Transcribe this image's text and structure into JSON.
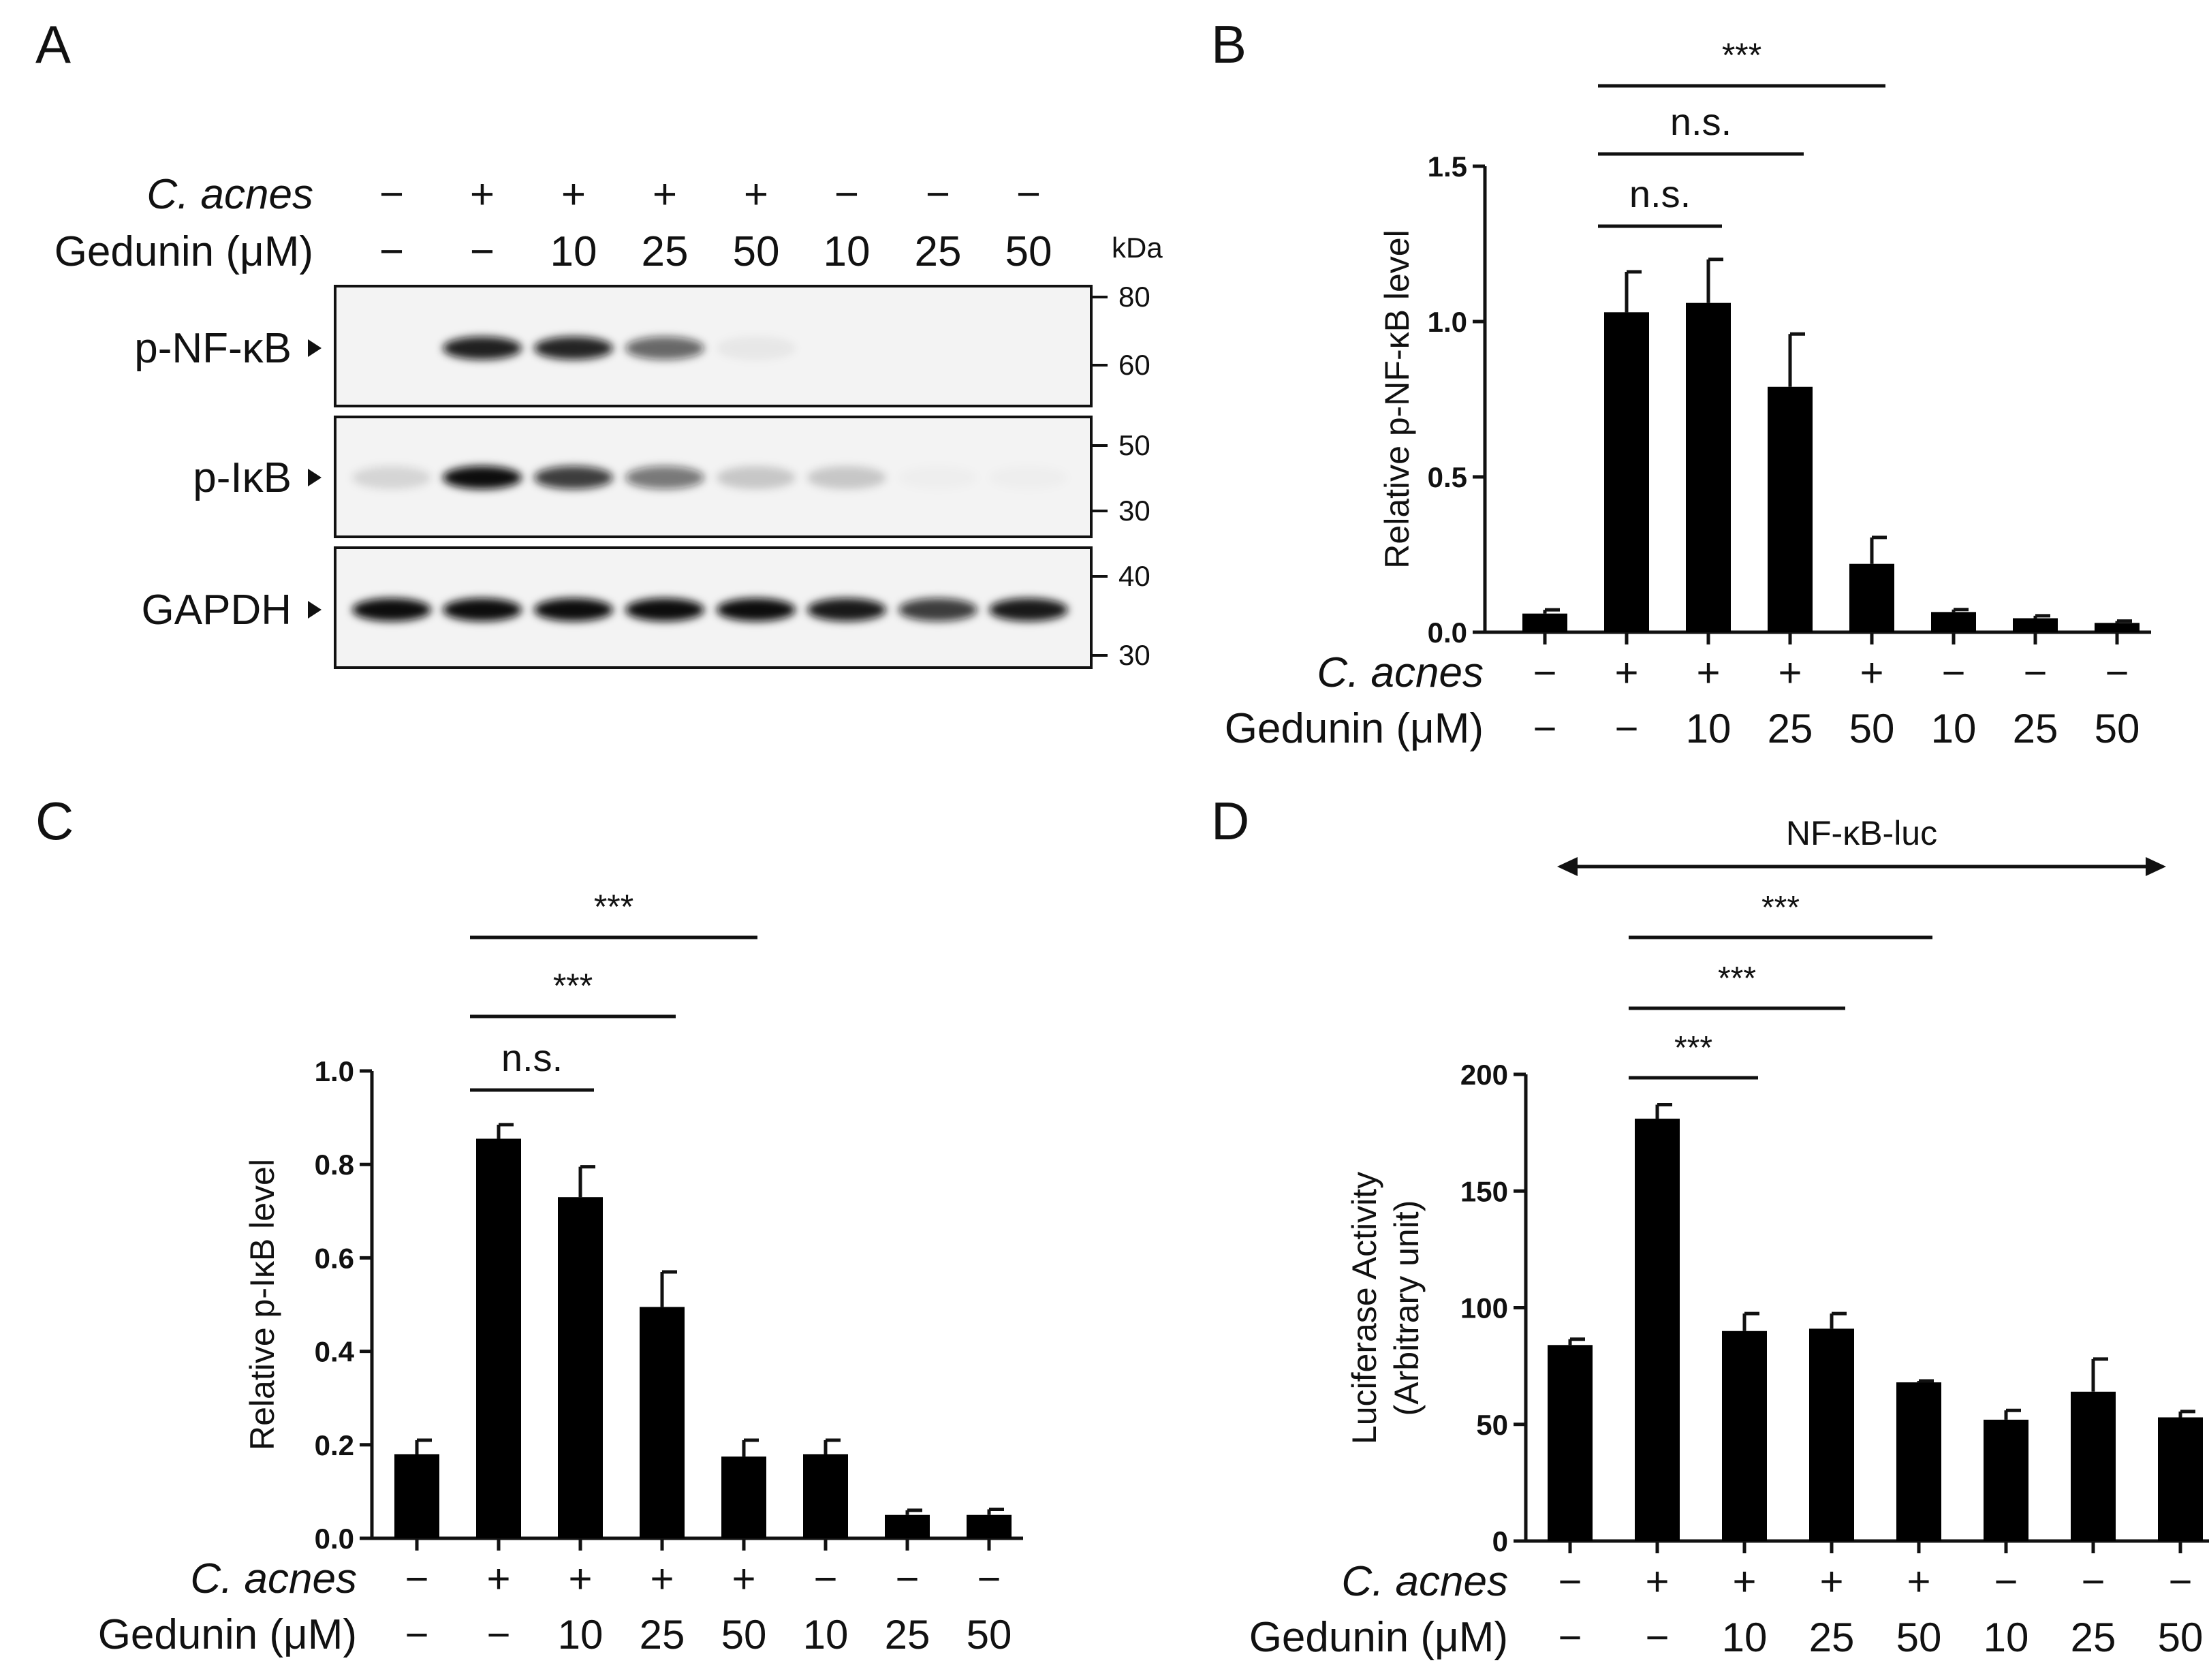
{
  "chart_data": [
    {
      "panel": "A",
      "type": "western-blot",
      "unit_label": "kDa",
      "row_labels": [
        "C. acnes",
        "Gedunin (μM)"
      ],
      "lanes": [
        {
          "c_acnes": "−",
          "gedunin": "−"
        },
        {
          "c_acnes": "+",
          "gedunin": "−"
        },
        {
          "c_acnes": "+",
          "gedunin": "10"
        },
        {
          "c_acnes": "+",
          "gedunin": "25"
        },
        {
          "c_acnes": "+",
          "gedunin": "50"
        },
        {
          "c_acnes": "−",
          "gedunin": "10"
        },
        {
          "c_acnes": "−",
          "gedunin": "25"
        },
        {
          "c_acnes": "−",
          "gedunin": "50"
        }
      ],
      "blots": [
        {
          "label": "p-NF-κB",
          "markers": [
            "80",
            "60"
          ],
          "intensities": [
            0,
            0.92,
            0.9,
            0.62,
            0.05,
            0,
            0,
            0
          ]
        },
        {
          "label": "p-IκB",
          "markers": [
            "50",
            "30"
          ],
          "intensities": [
            0.12,
            1.0,
            0.8,
            0.55,
            0.18,
            0.18,
            0.02,
            0.02
          ]
        },
        {
          "label": "GAPDH",
          "markers": [
            "40",
            "30"
          ],
          "intensities": [
            1.0,
            1.0,
            1.0,
            1.0,
            1.0,
            0.95,
            0.8,
            0.95
          ]
        }
      ]
    },
    {
      "panel": "B",
      "type": "bar",
      "ylabel": "Relative p-NF-κB level",
      "ylim": [
        0,
        1.5
      ],
      "yticks": [
        "0.0",
        "0.5",
        "1.0",
        "1.5"
      ],
      "ytick_values": [
        0,
        0.5,
        1.0,
        1.5
      ],
      "row_labels": [
        "C. acnes",
        "Gedunin (μM)"
      ],
      "c_acnes": [
        "−",
        "+",
        "+",
        "+",
        "+",
        "−",
        "−",
        "−"
      ],
      "gedunin": [
        "−",
        "−",
        "10",
        "25",
        "50",
        "10",
        "25",
        "50"
      ],
      "values": [
        0.06,
        1.03,
        1.06,
        0.79,
        0.22,
        0.065,
        0.045,
        0.03
      ],
      "errors": [
        0.012,
        0.13,
        0.14,
        0.17,
        0.085,
        0.008,
        0.008,
        0.006
      ],
      "comparisons": [
        {
          "from": 1,
          "to": 2,
          "label": "n.s."
        },
        {
          "from": 1,
          "to": 3,
          "label": "n.s."
        },
        {
          "from": 1,
          "to": 4,
          "label": "***"
        }
      ]
    },
    {
      "panel": "C",
      "type": "bar",
      "ylabel": "Relative p-IκB level",
      "ylim": [
        0,
        1.0
      ],
      "yticks": [
        "0.0",
        "0.2",
        "0.4",
        "0.6",
        "0.8",
        "1.0"
      ],
      "ytick_values": [
        0,
        0.2,
        0.4,
        0.6,
        0.8,
        1.0
      ],
      "row_labels": [
        "C. acnes",
        "Gedunin (μM)"
      ],
      "c_acnes": [
        "−",
        "+",
        "+",
        "+",
        "+",
        "−",
        "−",
        "−"
      ],
      "gedunin": [
        "−",
        "−",
        "10",
        "25",
        "50",
        "10",
        "25",
        "50"
      ],
      "values": [
        0.18,
        0.855,
        0.73,
        0.495,
        0.175,
        0.18,
        0.05,
        0.05
      ],
      "errors": [
        0.03,
        0.03,
        0.065,
        0.075,
        0.035,
        0.03,
        0.01,
        0.012
      ],
      "comparisons": [
        {
          "from": 1,
          "to": 2,
          "label": "n.s."
        },
        {
          "from": 1,
          "to": 3,
          "label": "***"
        },
        {
          "from": 1,
          "to": 4,
          "label": "***"
        }
      ]
    },
    {
      "panel": "D",
      "type": "bar",
      "ylabel_lines": [
        "Luciferase Activity",
        "(Arbitrary unit)"
      ],
      "ylim": [
        0,
        200
      ],
      "yticks": [
        "0",
        "50",
        "100",
        "150",
        "200"
      ],
      "ytick_values": [
        0,
        50,
        100,
        150,
        200
      ],
      "row_labels": [
        "C. acnes",
        "Gedunin (μM)"
      ],
      "c_acnes": [
        "−",
        "+",
        "+",
        "+",
        "+",
        "−",
        "−",
        "−"
      ],
      "gedunin": [
        "−",
        "−",
        "10",
        "25",
        "50",
        "10",
        "25",
        "50"
      ],
      "values": [
        84,
        181,
        90,
        91,
        68,
        52,
        64,
        53
      ],
      "errors": [
        2.5,
        6,
        7.5,
        6.5,
        0.6,
        4,
        14,
        2.5
      ],
      "range_label": "NF-κB-luc",
      "comparisons": [
        {
          "from": 1,
          "to": 2,
          "label": "***"
        },
        {
          "from": 1,
          "to": 3,
          "label": "***"
        },
        {
          "from": 1,
          "to": 4,
          "label": "***"
        }
      ]
    }
  ]
}
